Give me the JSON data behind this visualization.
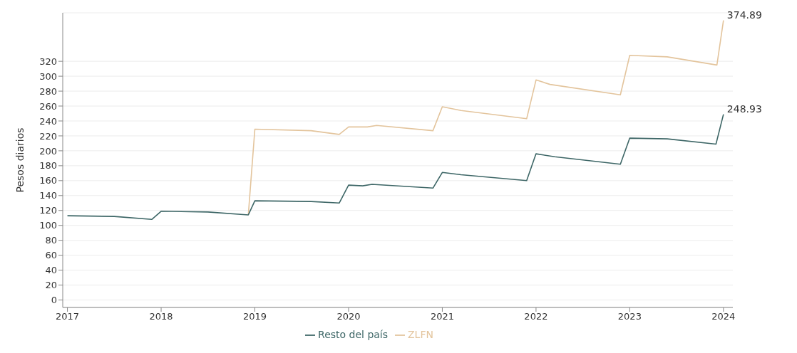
{
  "chart_data": {
    "type": "line",
    "ylabel": "Pesos diarios",
    "xlim": [
      2016.95,
      2024.1
    ],
    "xticks": [
      2017,
      2018,
      2019,
      2020,
      2021,
      2022,
      2023,
      2024
    ],
    "ylim": [
      -10,
      385
    ],
    "yticks": [
      0,
      20,
      40,
      60,
      80,
      100,
      120,
      140,
      160,
      180,
      200,
      220,
      240,
      260,
      280,
      300,
      320
    ],
    "grid": "y",
    "legend": "bottom",
    "marker": "none",
    "line_style": "solid",
    "series": [
      {
        "name": "ZLFN",
        "color": "#e3c49c",
        "x": [
          2018.93,
          2019,
          2019.6,
          2019.9,
          2020,
          2020.2,
          2020.3,
          2020.9,
          2021,
          2021.2,
          2021.9,
          2022,
          2022.15,
          2022.9,
          2023,
          2023.4,
          2023.93,
          2024
        ],
        "values": [
          114,
          229,
          227,
          222,
          232,
          232,
          234,
          227,
          259,
          254,
          243,
          295,
          289,
          275,
          328,
          326,
          315,
          374.89
        ]
      },
      {
        "name": "Resto del país",
        "color": "#3d6666",
        "x": [
          2017,
          2017.5,
          2017.9,
          2018,
          2018.5,
          2018.93,
          2019,
          2019.6,
          2019.9,
          2020,
          2020.15,
          2020.25,
          2020.9,
          2021,
          2021.2,
          2021.9,
          2022,
          2022.2,
          2022.9,
          2023,
          2023.4,
          2023.92,
          2024
        ],
        "values": [
          113,
          112,
          108,
          119,
          118,
          114,
          133,
          132,
          130,
          154,
          153,
          155,
          150,
          171,
          168,
          160,
          196,
          192,
          182,
          217,
          216,
          209,
          248.93
        ]
      }
    ],
    "annotations": [
      {
        "text": "374.89",
        "x": 2024,
        "y": 374.89
      },
      {
        "text": "248.93",
        "x": 2024,
        "y": 248.93
      }
    ]
  }
}
